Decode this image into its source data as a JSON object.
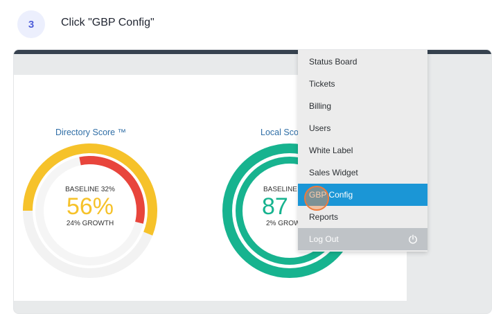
{
  "step": {
    "number": "3",
    "instruction": "Click \"GBP Config\""
  },
  "dashboard": {
    "directory_score": {
      "title": "Directory Score ™",
      "baseline": "BASELINE 32%",
      "value": "56%",
      "growth": "24% GROWTH",
      "value_color": "#f6c22a",
      "outer_arc_color": "#f6c22a",
      "inner_arc_color": "#e8453c",
      "outer_fraction": 0.56,
      "inner_fraction": 0.32
    },
    "local_score": {
      "title": "Local Sco",
      "baseline": "BASELINE",
      "value": "87",
      "growth": "2% GROW",
      "value_color": "#17b38f",
      "arc_color": "#17b38f"
    }
  },
  "menu": {
    "items": [
      {
        "label": "Status Board"
      },
      {
        "label": "Tickets"
      },
      {
        "label": "Billing"
      },
      {
        "label": "Users"
      },
      {
        "label": "White Label"
      },
      {
        "label": "Sales Widget"
      },
      {
        "label": "GBP Config",
        "active": true
      },
      {
        "label": "Reports"
      }
    ],
    "logout_label": "Log Out",
    "logout_icon": "power-icon",
    "active_color": "#1b96d6"
  }
}
